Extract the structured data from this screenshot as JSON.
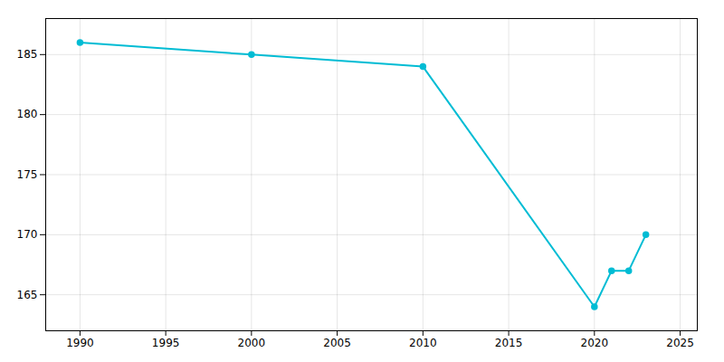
{
  "chart_data": {
    "type": "line",
    "x": [
      1990,
      2000,
      2010,
      2020,
      2021,
      2022,
      2023
    ],
    "values": [
      186,
      185,
      184,
      164,
      167,
      167,
      170
    ],
    "color": "#00BCD4",
    "marker": "circle",
    "xlim": [
      1988,
      2026
    ],
    "ylim": [
      162,
      188
    ],
    "xticks": [
      1990,
      1995,
      2000,
      2005,
      2010,
      2015,
      2020,
      2025
    ],
    "yticks": [
      165,
      170,
      175,
      180,
      185
    ],
    "grid": true
  }
}
